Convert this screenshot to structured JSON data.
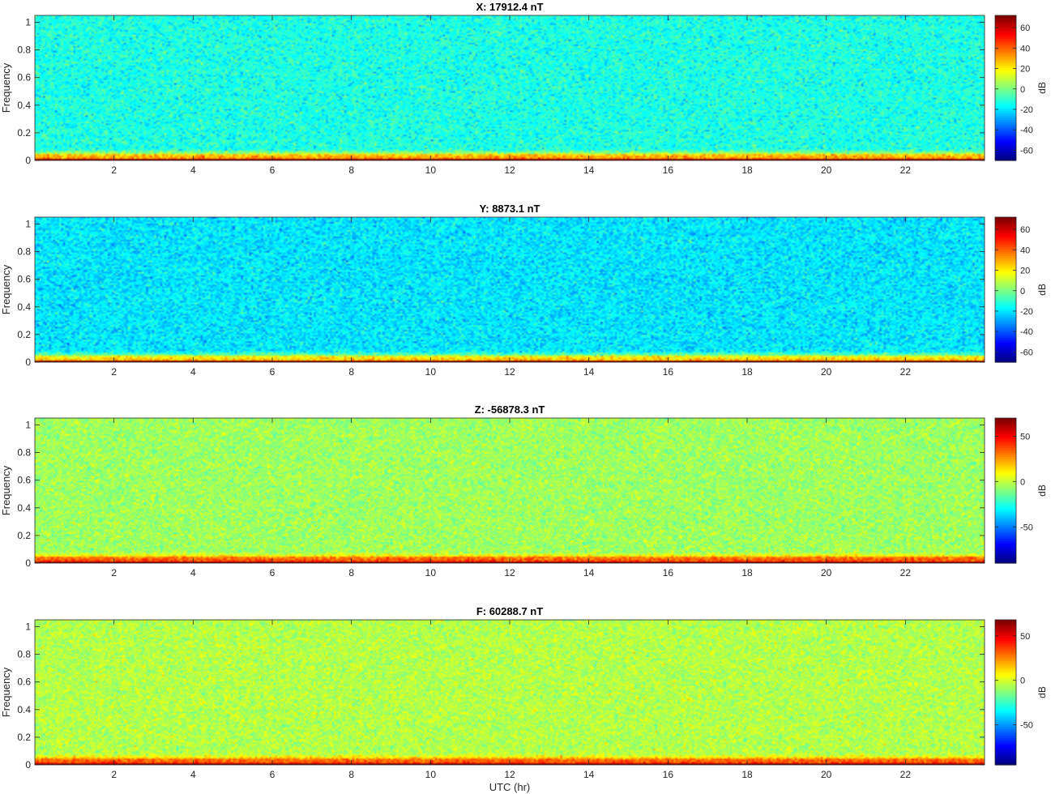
{
  "chart_data": [
    {
      "type": "heatmap",
      "title": "X: 17912.4 nT",
      "ylabel": "Frequency",
      "xlabel": "",
      "xlim": [
        0,
        24
      ],
      "ylim": [
        0,
        1.05
      ],
      "xticks": [
        2,
        4,
        6,
        8,
        10,
        12,
        14,
        16,
        18,
        20,
        22
      ],
      "yticks": [
        0,
        0.2,
        0.4,
        0.6,
        0.8,
        1
      ],
      "colorbar": {
        "label": "dB",
        "clim": [
          -70,
          72
        ],
        "ticks": [
          -60,
          -40,
          -20,
          0,
          20,
          40,
          60
        ]
      },
      "colormap": "jet",
      "level_profile_db": {
        "high_freq": -13,
        "near_zero_band": 25,
        "at_zero": 70
      }
    },
    {
      "type": "heatmap",
      "title": "Y: 8873.1 nT",
      "ylabel": "Frequency",
      "xlabel": "",
      "xlim": [
        0,
        24
      ],
      "ylim": [
        0,
        1.05
      ],
      "xticks": [
        2,
        4,
        6,
        8,
        10,
        12,
        14,
        16,
        18,
        20,
        22
      ],
      "yticks": [
        0,
        0.2,
        0.4,
        0.6,
        0.8,
        1
      ],
      "colorbar": {
        "label": "dB",
        "clim": [
          -70,
          72
        ],
        "ticks": [
          -60,
          -40,
          -20,
          0,
          20,
          40,
          60
        ]
      },
      "colormap": "jet",
      "level_profile_db": {
        "high_freq": -20,
        "near_zero_band": 18,
        "at_zero": 70
      }
    },
    {
      "type": "heatmap",
      "title": "Z: -56878.3 nT",
      "ylabel": "Frequency",
      "xlabel": "",
      "xlim": [
        0,
        24
      ],
      "ylim": [
        0,
        1.05
      ],
      "xticks": [
        2,
        4,
        6,
        8,
        10,
        12,
        14,
        16,
        18,
        20,
        22
      ],
      "yticks": [
        0,
        0.2,
        0.4,
        0.6,
        0.8,
        1
      ],
      "colorbar": {
        "label": "dB",
        "clim": [
          -90,
          70
        ],
        "ticks": [
          -50,
          0,
          50
        ]
      },
      "colormap": "jet",
      "level_profile_db": {
        "high_freq": -5,
        "near_zero_band": 30,
        "at_zero": 65
      }
    },
    {
      "type": "heatmap",
      "title": "F: 60288.7 nT",
      "ylabel": "Frequency",
      "xlabel": "UTC (hr)",
      "xlim": [
        0,
        24
      ],
      "ylim": [
        0,
        1.05
      ],
      "xticks": [
        2,
        4,
        6,
        8,
        10,
        12,
        14,
        16,
        18,
        20,
        22
      ],
      "yticks": [
        0,
        0.2,
        0.4,
        0.6,
        0.8,
        1
      ],
      "colorbar": {
        "label": "dB",
        "clim": [
          -95,
          68
        ],
        "ticks": [
          -50,
          0,
          50
        ]
      },
      "colormap": "jet",
      "level_profile_db": {
        "high_freq": -5,
        "near_zero_band": 28,
        "at_zero": 65
      }
    }
  ]
}
